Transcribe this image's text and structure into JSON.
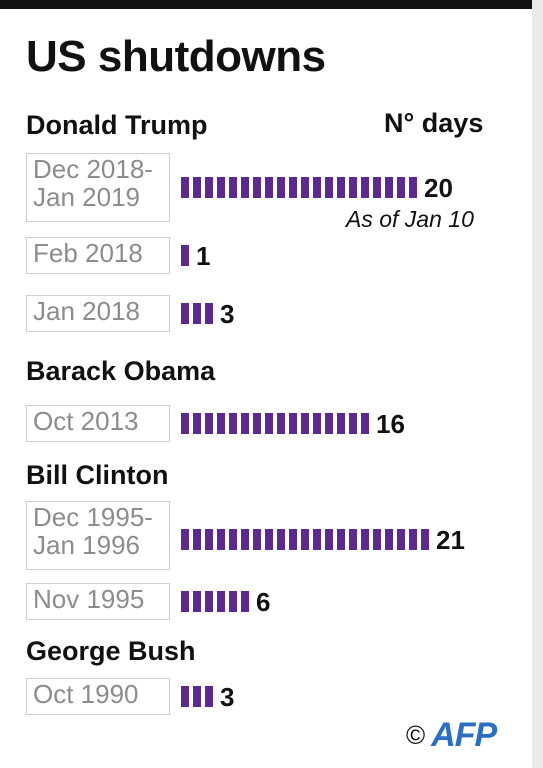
{
  "title": "US shutdowns",
  "units_label": "N° days",
  "note": "As of Jan 10",
  "credit": {
    "copyright": "©",
    "logo": "AFP"
  },
  "colors": {
    "bar": "#5b2a8c",
    "text": "#111111",
    "date_text": "#8c8c8c",
    "box_border": "#cfcfcf",
    "logo": "#2b6ec4"
  },
  "chart_data": {
    "type": "bar",
    "orientation": "horizontal",
    "title": "US shutdowns",
    "units": "N° days",
    "groups": [
      {
        "president": "Donald Trump",
        "items": [
          {
            "period": "Dec 2018-\nJan 2019",
            "days": 20,
            "note": "As of Jan 10"
          },
          {
            "period": "Feb 2018",
            "days": 1
          },
          {
            "period": "Jan 2018",
            "days": 3
          }
        ]
      },
      {
        "president": "Barack Obama",
        "items": [
          {
            "period": "Oct 2013",
            "days": 16
          }
        ]
      },
      {
        "president": "Bill Clinton",
        "items": [
          {
            "period": "Dec 1995-\nJan 1996",
            "days": 21
          },
          {
            "period": "Nov 1995",
            "days": 6
          }
        ]
      },
      {
        "president": "George Bush",
        "items": [
          {
            "period": "Oct 1990",
            "days": 3
          }
        ]
      }
    ]
  }
}
